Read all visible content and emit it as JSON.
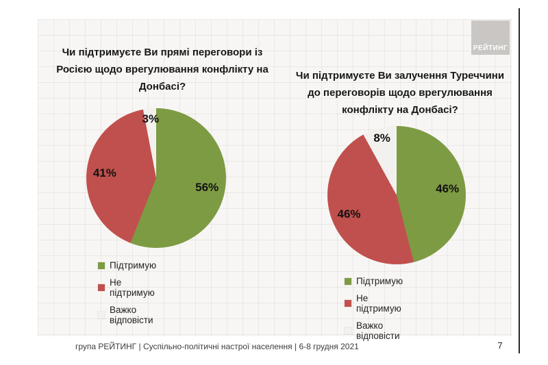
{
  "page": {
    "logo_text": "РЕЙТИНГ",
    "footer": "група РЕЙТИНГ | Суспільно-політичні настрої населення  | 6-8 грудня 2021",
    "page_number": "7"
  },
  "colors": {
    "support_green": "#7d9b43",
    "oppose_red": "#c0504d",
    "hard_to_answer_gray": "#f2f1ee",
    "slide_background": "#f7f6f4",
    "logo_gray": "#c9c6c4"
  },
  "chart_data": [
    {
      "type": "pie",
      "title": "Чи підтримуєте Ви прямі переговори із Росією щодо врегулювання конфлікту на Донбасі?",
      "categories": [
        "Підтримую",
        "Не підтримую",
        "Важко відповісти"
      ],
      "values": [
        56,
        41,
        3
      ],
      "value_labels": [
        "56%",
        "41%",
        "3%"
      ],
      "colors": [
        "#7d9b43",
        "#c0504d",
        "#f2f1ee"
      ],
      "legend_position": "bottom-left",
      "start_angle_deg": 0,
      "direction": "clockwise"
    },
    {
      "type": "pie",
      "title": "Чи підтримуєте Ви залучення Туреччини до переговорів щодо врегулювання конфлікту на Донбасі?",
      "categories": [
        "Підтримую",
        "Не підтримую",
        "Важко відповісти"
      ],
      "values": [
        46,
        46,
        8
      ],
      "value_labels": [
        "46%",
        "46%",
        "8%"
      ],
      "colors": [
        "#7d9b43",
        "#c0504d",
        "#f2f1ee"
      ],
      "legend_position": "bottom-left",
      "start_angle_deg": 0,
      "direction": "clockwise"
    }
  ]
}
